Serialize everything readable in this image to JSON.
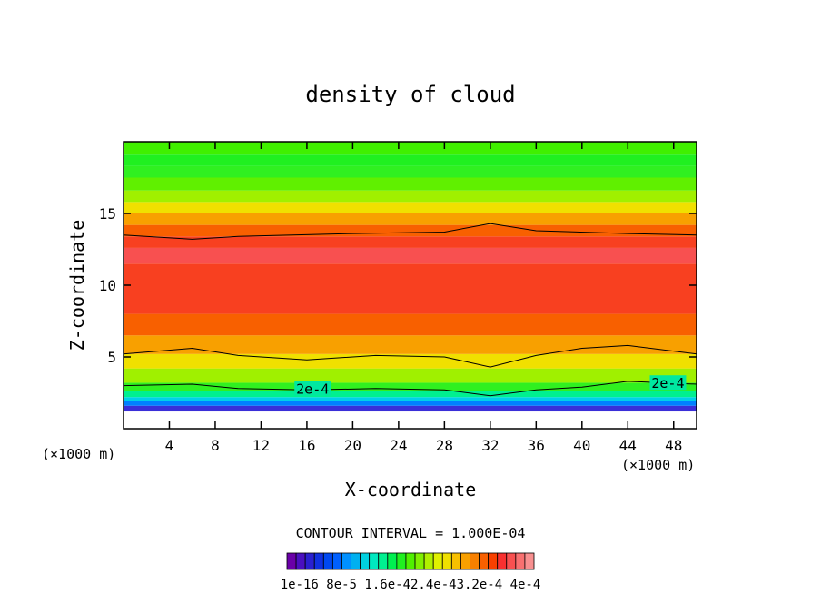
{
  "chart_data": {
    "type": "heatmap",
    "title": "density of cloud",
    "xlabel": "X-coordinate",
    "ylabel": "Z-coordinate",
    "x_unit": "(×1000 m)",
    "y_unit": "(×1000 m)",
    "xlim": [
      0,
      50
    ],
    "ylim": [
      0,
      20
    ],
    "x_ticks": [
      4,
      8,
      12,
      16,
      20,
      24,
      28,
      32,
      36,
      40,
      44,
      48
    ],
    "y_ticks": [
      5,
      10,
      15
    ],
    "contour_interval_text": "CONTOUR INTERVAL = 1.000E-04",
    "contour_label": "2e-4",
    "colorbar_labels": [
      "1e-16",
      "8e-5",
      "1.6e-4",
      "2.4e-4",
      "3.2e-4",
      "4e-4"
    ],
    "colorbar_label_text": "1e-16 8e-5 1.6e-42.4e-43.2e-4 4e-4",
    "colorbar_colors": [
      "#6a00a8",
      "#4a10c0",
      "#2a20d0",
      "#1030e0",
      "#0048f0",
      "#0060ff",
      "#0090ff",
      "#00b0f0",
      "#00d0e0",
      "#00e8c0",
      "#00f090",
      "#00f050",
      "#20f020",
      "#50f000",
      "#80f000",
      "#b0f000",
      "#e0f000",
      "#f0e000",
      "#f8c000",
      "#f8a000",
      "#f88000",
      "#f86000",
      "#f84000",
      "#f83030",
      "#f85050",
      "#f87070",
      "#f89090"
    ],
    "band_z_levels": [
      1.2,
      1.6,
      1.9,
      2.2,
      2.6,
      3.2,
      4.2,
      5.2,
      6.5,
      8.0,
      11.5,
      12.6,
      13.4,
      14.2,
      15.0,
      15.8,
      16.6,
      17.5,
      18.3,
      19.1
    ],
    "band_colors": [
      "#3a2ed8",
      "#0080ff",
      "#00d0e8",
      "#00f090",
      "#30f020",
      "#a0f000",
      "#f0e000",
      "#f8a000",
      "#f86000",
      "#f84020",
      "#f85050",
      "#f84020",
      "#f86000",
      "#f8a000",
      "#f0e000",
      "#a0f000",
      "#60f000",
      "#30f020",
      "#20f020",
      "#40f000"
    ],
    "contour_lines": [
      {
        "level": "upper",
        "points": [
          [
            0,
            13.5
          ],
          [
            6,
            13.2
          ],
          [
            10,
            13.4
          ],
          [
            20,
            13.6
          ],
          [
            28,
            13.7
          ],
          [
            32,
            14.3
          ],
          [
            36,
            13.8
          ],
          [
            44,
            13.6
          ],
          [
            50,
            13.5
          ]
        ]
      },
      {
        "level": "mid",
        "points": [
          [
            0,
            5.2
          ],
          [
            6,
            5.6
          ],
          [
            10,
            5.1
          ],
          [
            16,
            4.8
          ],
          [
            22,
            5.1
          ],
          [
            28,
            5.0
          ],
          [
            32,
            4.3
          ],
          [
            36,
            5.1
          ],
          [
            40,
            5.6
          ],
          [
            44,
            5.8
          ],
          [
            50,
            5.2
          ]
        ]
      },
      {
        "level": "2e-4",
        "points": [
          [
            0,
            3.0
          ],
          [
            6,
            3.1
          ],
          [
            10,
            2.8
          ],
          [
            16,
            2.7
          ],
          [
            22,
            2.8
          ],
          [
            28,
            2.7
          ],
          [
            32,
            2.3
          ],
          [
            36,
            2.7
          ],
          [
            40,
            2.9
          ],
          [
            44,
            3.3
          ],
          [
            50,
            3.1
          ]
        ]
      }
    ]
  }
}
